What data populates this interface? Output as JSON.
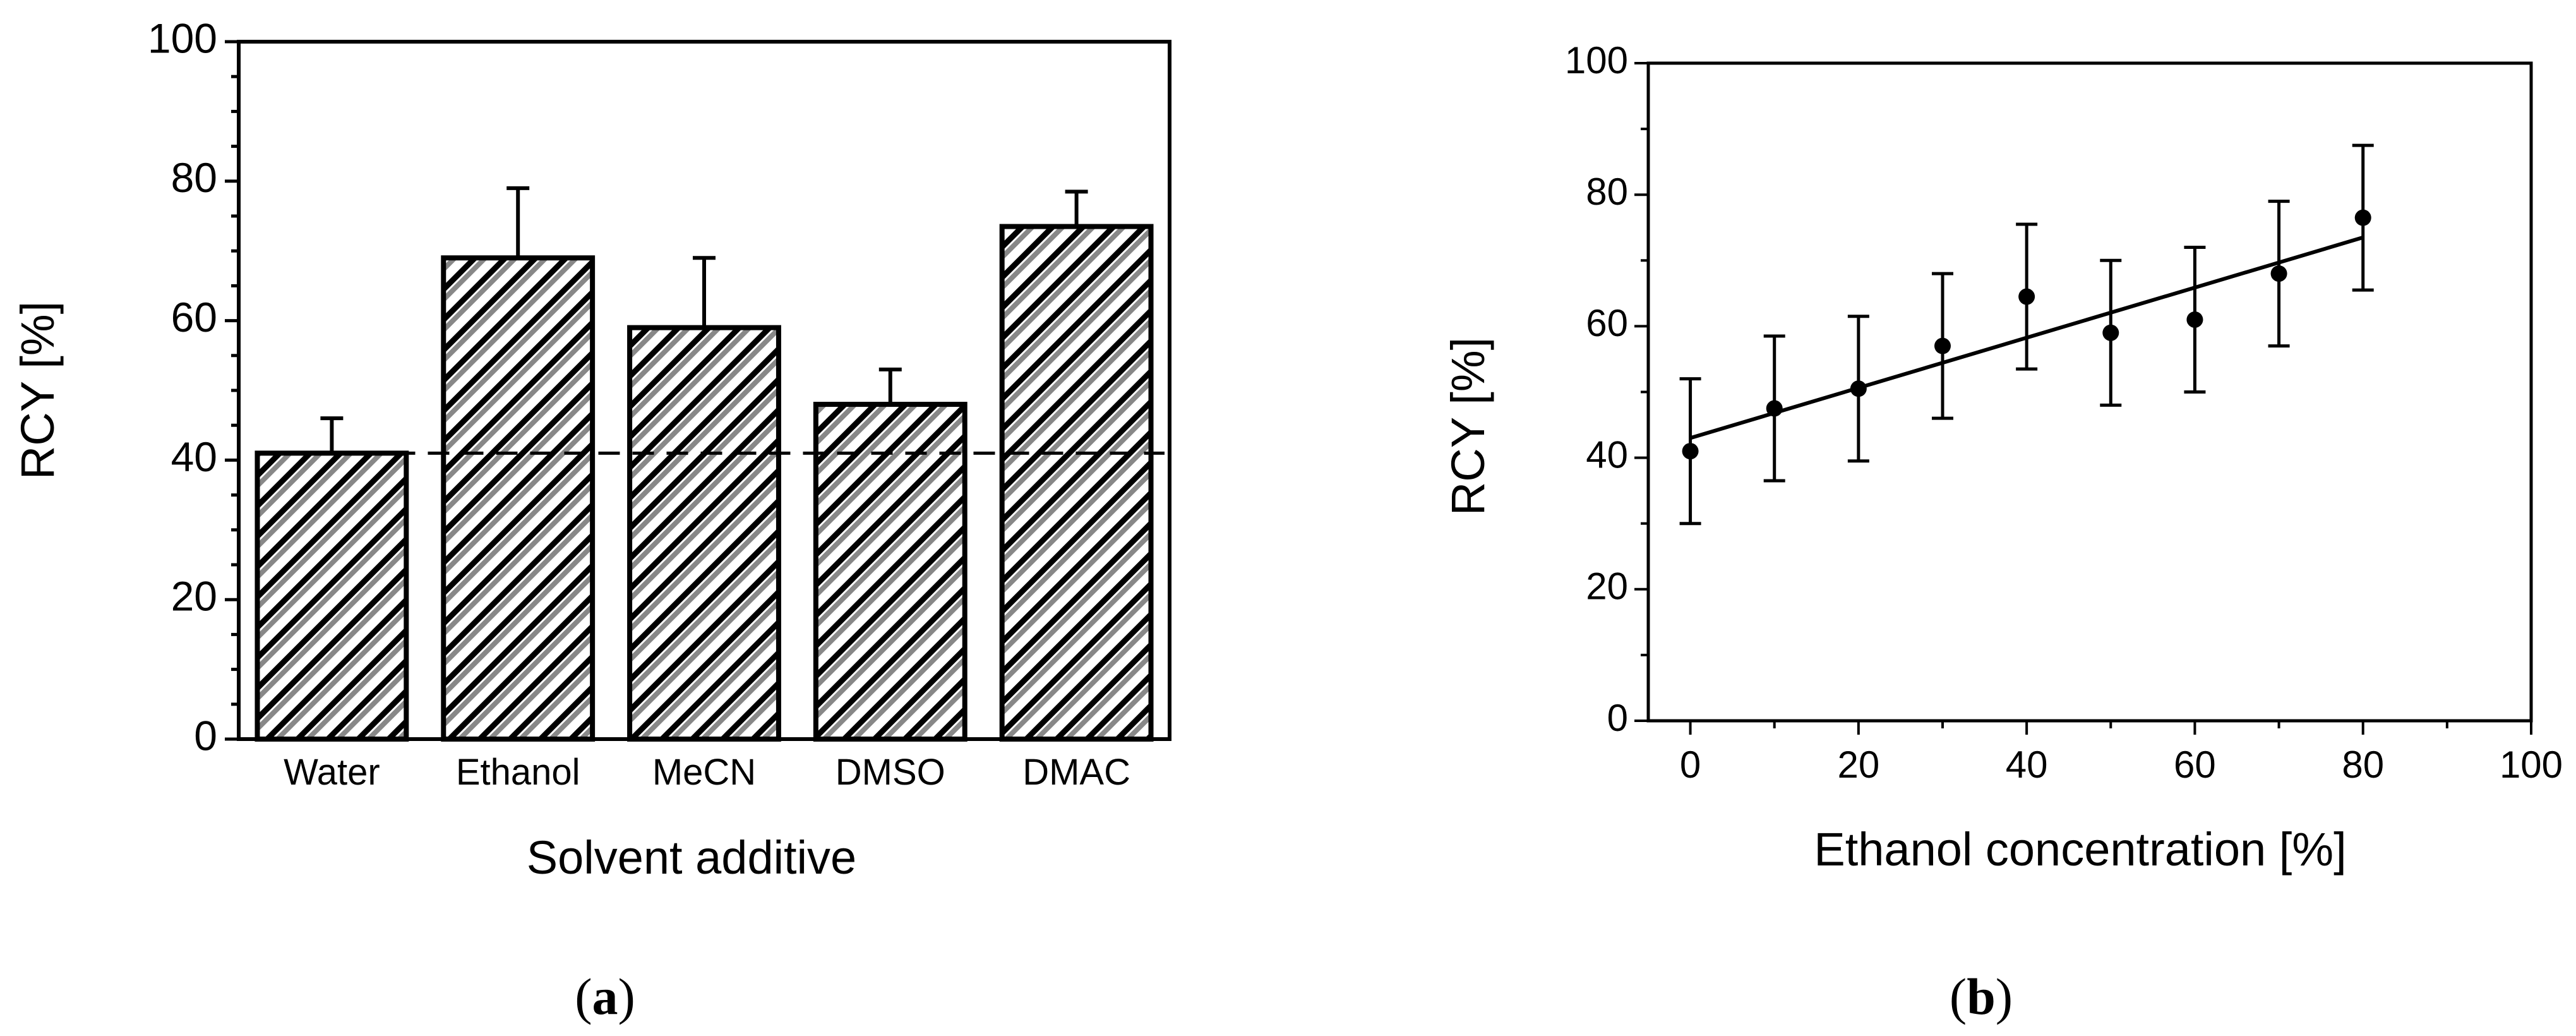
{
  "colors": {
    "ink": "#000000",
    "background": "#ffffff",
    "hatch_light": "#888888"
  },
  "panel_a": {
    "label": "(a)",
    "label_letter": "a",
    "xlabel": "Solvent additive",
    "ylabel": "RCY [%]",
    "y_ticks": [
      "0",
      "20",
      "40",
      "60",
      "80",
      "100"
    ]
  },
  "panel_b": {
    "label": "(b)",
    "label_letter": "b",
    "xlabel": "Ethanol concentration [%]",
    "ylabel": "RCY [%]",
    "x_ticks": [
      "0",
      "20",
      "40",
      "60",
      "80",
      "100"
    ],
    "y_ticks": [
      "0",
      "20",
      "40",
      "60",
      "80",
      "100"
    ]
  },
  "chart_data": [
    {
      "type": "bar",
      "panel": "a",
      "title": "",
      "xlabel": "Solvent additive",
      "ylabel": "RCY [%]",
      "categories": [
        "Water",
        "Ethanol",
        "MeCN",
        "DMSO",
        "DMAC"
      ],
      "values": [
        41,
        69,
        59,
        48,
        73.5
      ],
      "error_plus": [
        5,
        10,
        10,
        5,
        5
      ],
      "ylim": [
        0,
        100
      ],
      "y_major_ticks": [
        0,
        20,
        40,
        60,
        80,
        100
      ],
      "y_minor_step": 5,
      "reference_line": {
        "y": 41,
        "style": "dashed"
      },
      "bar_fill": "diagonal hatch",
      "grid": false
    },
    {
      "type": "scatter",
      "panel": "b",
      "title": "",
      "xlabel": "Ethanol concentration [%]",
      "ylabel": "RCY [%]",
      "x": [
        0,
        10,
        20,
        30,
        40,
        50,
        60,
        70,
        80
      ],
      "y": [
        41,
        47.5,
        50.5,
        57,
        64.5,
        59,
        61,
        68,
        76.5
      ],
      "error": [
        11,
        11,
        11,
        11,
        11,
        11,
        11,
        11,
        11
      ],
      "fit_line": {
        "x": [
          0,
          80
        ],
        "y": [
          43,
          73.5
        ]
      },
      "xlim": [
        -5,
        100
      ],
      "ylim": [
        0,
        100
      ],
      "x_major_ticks": [
        0,
        20,
        40,
        60,
        80,
        100
      ],
      "y_major_ticks": [
        0,
        20,
        40,
        60,
        80,
        100
      ],
      "grid": false
    }
  ]
}
